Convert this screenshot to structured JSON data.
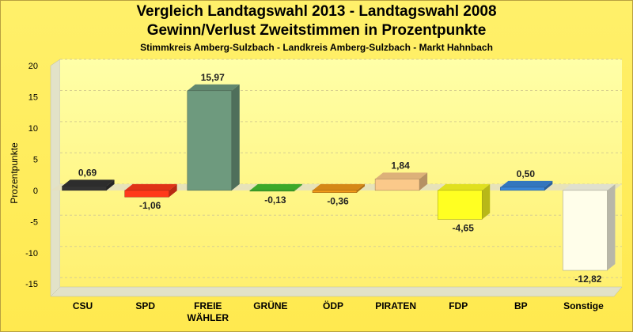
{
  "chart_data": {
    "type": "bar",
    "title": "Vergleich Landtagswahl 2013 - Landtagswahl 2008",
    "subtitle": "Gewinn/Verlust Zweitstimmen in Prozentpunkte",
    "subsubtitle": "Stimmkreis Amberg-Sulzbach - Landkreis Amberg-Sulzbach - Markt Hahnbach",
    "xlabel": "",
    "ylabel": "Prozentpunkte",
    "ylim": [
      -17,
      20
    ],
    "yticks": [
      20,
      15,
      10,
      5,
      0,
      -5,
      -10,
      -15
    ],
    "ytick_labels": [
      "20",
      "15",
      "10",
      "5",
      "0",
      "-5",
      "-10",
      "-15"
    ],
    "grid": true,
    "categories": [
      "CSU",
      "SPD",
      "FREIE WÄHLER",
      "GRÜNE",
      "ÖDP",
      "PIRATEN",
      "FDP",
      "BP",
      "Sonstige"
    ],
    "category_lines": [
      [
        "CSU"
      ],
      [
        "SPD"
      ],
      [
        "FREIE",
        "WÄHLER"
      ],
      [
        "GRÜNE"
      ],
      [
        "ÖDP"
      ],
      [
        "PIRATEN"
      ],
      [
        "FDP"
      ],
      [
        "BP"
      ],
      [
        "Sonstige"
      ]
    ],
    "values": [
      0.69,
      -1.06,
      15.97,
      -0.13,
      -0.36,
      1.84,
      -4.65,
      0.5,
      -12.82
    ],
    "value_labels": [
      "0,69",
      "-1,06",
      "15,97",
      "-0,13",
      "-0,36",
      "1,84",
      "-4,65",
      "0,50",
      "-12,82"
    ],
    "colors": [
      "#333333",
      "#FF3A1A",
      "#6E9A7E",
      "#44C030",
      "#F29A1A",
      "#FBC98A",
      "#FFFF22",
      "#3A86D8",
      "#FFFEEA"
    ]
  }
}
